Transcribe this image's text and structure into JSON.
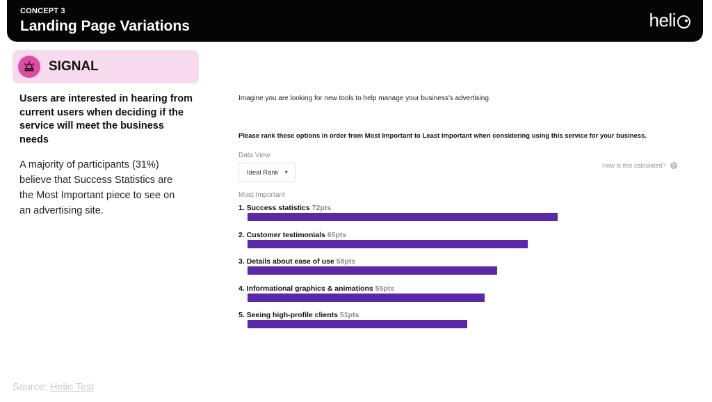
{
  "header": {
    "eyebrow": "CONCEPT 3",
    "title": "Landing Page Variations",
    "logo_text": "heli",
    "background": "#050505"
  },
  "signal": {
    "icon": "alarm-light-icon",
    "label": "SIGNAL",
    "badge_color": "#f8dced",
    "icon_color": "#e04aa3"
  },
  "insight": {
    "headline": "Users are interested in hearing from current users when deciding if the service will meet the business needs",
    "body": "A majority of participants (31%) believe that Success Statistics are the Most Important piece to see on an advertising site."
  },
  "survey": {
    "prompt": "Imagine you are looking for new tools to help manage your business's advertising.",
    "question": "Please rank these options in order from Most Important to Least Important when considering using this service for your business.",
    "data_view_label": "Data View",
    "data_view_value": "Ideal Rank",
    "how_calculated": "How is this calculated?",
    "most_important_label": "Most Important"
  },
  "chart_data": {
    "type": "bar",
    "orientation": "horizontal",
    "bar_color": "#5b28a8",
    "categories": [
      "1. Success statistics",
      "2. Customer testimonials",
      "3. Details about ease of use",
      "4. Informational graphics & animations",
      "5. Seeing high-profile clients"
    ],
    "values": [
      72,
      65,
      58,
      55,
      51
    ],
    "value_labels": [
      "72pts",
      "65pts",
      "58pts",
      "55pts",
      "51pts"
    ]
  },
  "footer": {
    "source_prefix": "Source: ",
    "source_link": "Helio Test"
  }
}
